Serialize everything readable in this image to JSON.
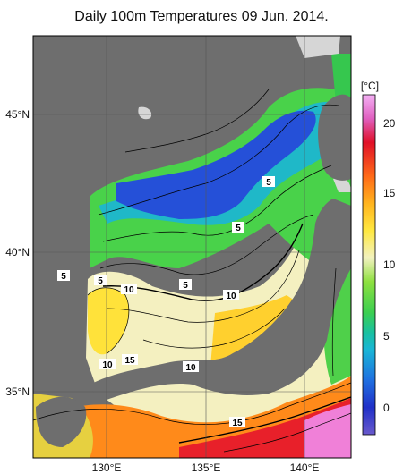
{
  "title": "Daily 100m Temperatures 09 Jun. 2014.",
  "lat_labels": [
    "45°N",
    "40°N",
    "35°N"
  ],
  "lon_labels": [
    "130°E",
    "135°E",
    "140°E"
  ],
  "colorbar": {
    "unit": "[°C]",
    "ticks": [
      "20",
      "15",
      "10",
      "5",
      "0"
    ],
    "range": [
      -2,
      22
    ],
    "colors": [
      "#6a5acd",
      "#1f3fd0",
      "#1f8fe0",
      "#19c0c0",
      "#31d16a",
      "#5fdc3a",
      "#a8e85a",
      "#f0f0b0",
      "#ffe23a",
      "#ffa41a",
      "#ff5a16",
      "#e0102a",
      "#e060c0",
      "#f0a0f0"
    ]
  },
  "contour_labels": [
    "5",
    "5",
    "5",
    "5",
    "5",
    "10",
    "10",
    "10",
    "15",
    "10",
    "15"
  ],
  "colors": {
    "land": "#6e6e6e",
    "missing": "#d8d8d8",
    "cold": "#2550d8",
    "warm_pink": "#f080d8"
  }
}
